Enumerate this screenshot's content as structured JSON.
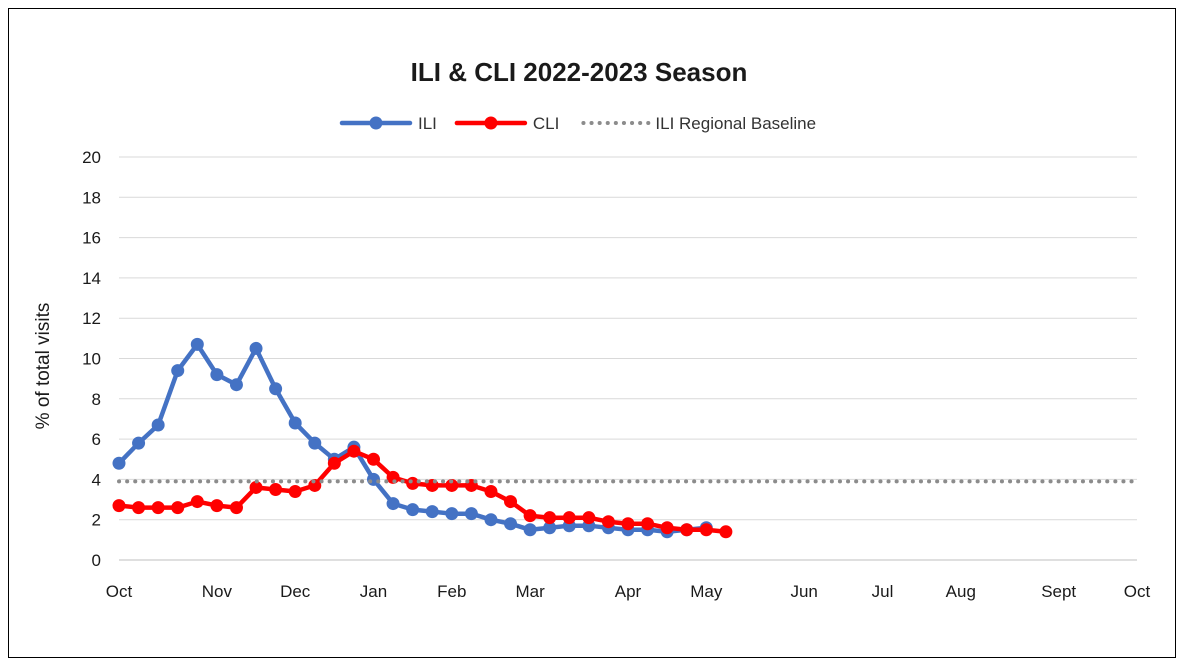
{
  "chart_data": {
    "type": "line",
    "title": "ILI & CLI 2022-2023 Season",
    "xlabel": "",
    "ylabel": "% of total visits",
    "ylim": [
      0,
      20
    ],
    "yticks": [
      0,
      2,
      4,
      6,
      8,
      10,
      12,
      14,
      16,
      18,
      20
    ],
    "xlim": [
      0,
      52
    ],
    "xticks": [
      {
        "label": "Oct",
        "week": 0
      },
      {
        "label": "Nov",
        "week": 5
      },
      {
        "label": "Dec",
        "week": 9
      },
      {
        "label": "Jan",
        "week": 13
      },
      {
        "label": "Feb",
        "week": 17
      },
      {
        "label": "Mar",
        "week": 21
      },
      {
        "label": "Apr",
        "week": 26
      },
      {
        "label": "May",
        "week": 30
      },
      {
        "label": "Jun",
        "week": 35
      },
      {
        "label": "Jul",
        "week": 39
      },
      {
        "label": "Aug",
        "week": 43
      },
      {
        "label": "Sept",
        "week": 48
      },
      {
        "label": "Oct",
        "week": 52
      }
    ],
    "grid": "horizontal",
    "legend": "top-center",
    "series": [
      {
        "name": "ILI",
        "color": "#4472C4",
        "style": "solid-marker",
        "x": [
          0,
          1,
          2,
          3,
          4,
          5,
          6,
          7,
          8,
          9,
          10,
          11,
          12,
          13,
          14,
          15,
          16,
          17,
          18,
          19,
          20,
          21,
          22,
          23,
          24,
          25,
          26,
          27,
          28,
          29,
          30
        ],
        "values": [
          4.8,
          5.8,
          6.7,
          9.4,
          10.7,
          9.2,
          8.7,
          10.5,
          8.5,
          6.8,
          5.8,
          5.0,
          5.6,
          4.0,
          2.8,
          2.5,
          2.4,
          2.3,
          2.3,
          2.0,
          1.8,
          1.5,
          1.6,
          1.7,
          1.7,
          1.6,
          1.5,
          1.5,
          1.4,
          1.5,
          1.6
        ]
      },
      {
        "name": "CLI",
        "color": "#FF0000",
        "style": "solid-marker",
        "x": [
          0,
          1,
          2,
          3,
          4,
          5,
          6,
          7,
          8,
          9,
          10,
          11,
          12,
          13,
          14,
          15,
          16,
          17,
          18,
          19,
          20,
          21,
          22,
          23,
          24,
          25,
          26,
          27,
          28,
          29,
          30,
          31
        ],
        "values": [
          2.7,
          2.6,
          2.6,
          2.6,
          2.9,
          2.7,
          2.6,
          3.6,
          3.5,
          3.4,
          3.7,
          4.8,
          5.4,
          5.0,
          4.1,
          3.8,
          3.7,
          3.7,
          3.7,
          3.4,
          2.9,
          2.2,
          2.1,
          2.1,
          2.1,
          1.9,
          1.8,
          1.8,
          1.6,
          1.5,
          1.5,
          1.4
        ]
      },
      {
        "name": "ILI Regional Baseline",
        "color": "#8C8C8C",
        "style": "dotted",
        "x": [
          0,
          52
        ],
        "values": [
          3.9,
          3.9
        ]
      }
    ]
  }
}
